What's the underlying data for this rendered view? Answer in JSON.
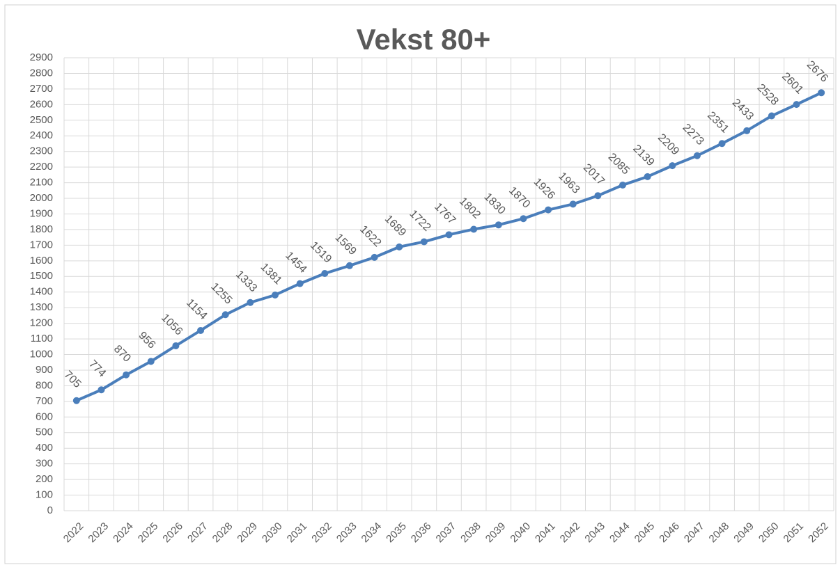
{
  "chart_data": {
    "type": "line",
    "title": "Vekst 80+",
    "categories": [
      "2022",
      "2023",
      "2024",
      "2025",
      "2026",
      "2027",
      "2028",
      "2029",
      "2030",
      "2031",
      "2032",
      "2033",
      "2034",
      "2035",
      "2036",
      "2037",
      "2038",
      "2039",
      "2040",
      "2041",
      "2042",
      "2043",
      "2044",
      "2045",
      "2046",
      "2047",
      "2048",
      "2049",
      "2050",
      "2051",
      "2052"
    ],
    "series": [
      {
        "color": "#4a7ebb",
        "values": [
          705,
          774,
          870,
          956,
          1056,
          1154,
          1255,
          1333,
          1381,
          1454,
          1519,
          1569,
          1622,
          1689,
          1722,
          1767,
          1802,
          1830,
          1870,
          1926,
          1963,
          2017,
          2085,
          2139,
          2209,
          2273,
          2351,
          2433,
          2528,
          2601,
          2676
        ]
      }
    ],
    "ylim": [
      0,
      2900
    ],
    "yticks": [
      0,
      100,
      200,
      300,
      400,
      500,
      600,
      700,
      800,
      900,
      1000,
      1100,
      1200,
      1300,
      1400,
      1500,
      1600,
      1700,
      1800,
      1900,
      2000,
      2100,
      2200,
      2300,
      2400,
      2500,
      2600,
      2700,
      2800,
      2900
    ],
    "grid": true
  }
}
